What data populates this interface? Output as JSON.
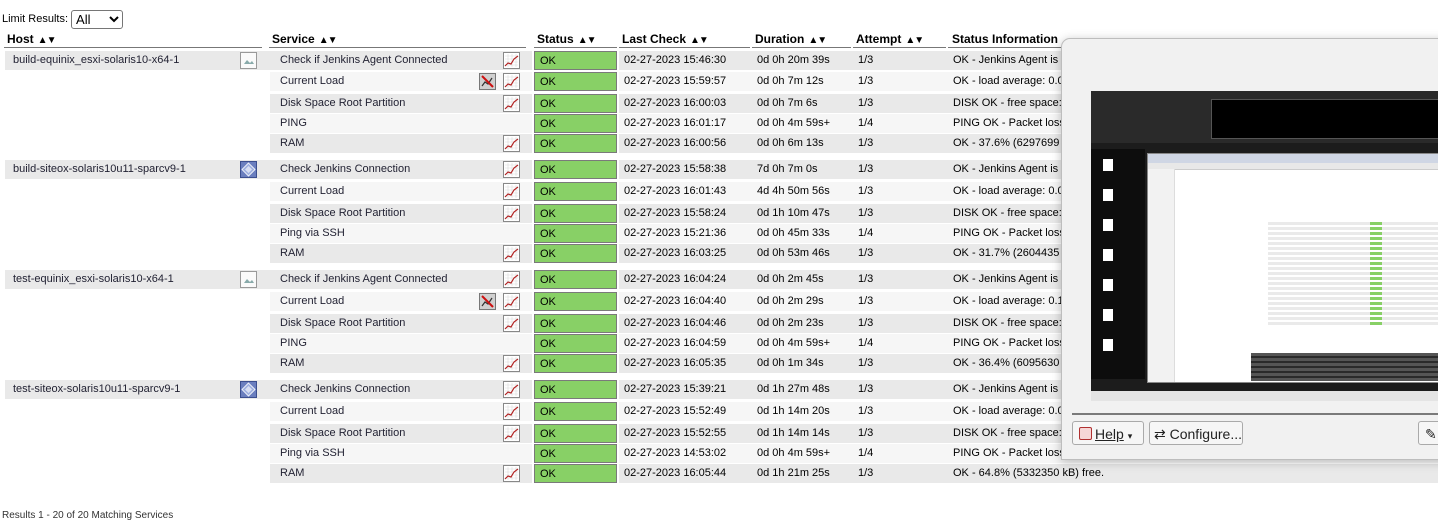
{
  "limit": {
    "label": "Limit Results:",
    "value": "All"
  },
  "columns": {
    "host": "Host",
    "service": "Service",
    "status": "Status",
    "last_check": "Last Check",
    "duration": "Duration",
    "attempt": "Attempt",
    "status_info": "Status Information"
  },
  "sort_arrows": "▲▼",
  "hosts": [
    {
      "name": "build-equinix_esxi-solaris10-x64-1",
      "icon": "host-image-icon",
      "services": [
        {
          "name": "Check if Jenkins Agent Connected",
          "graph": true,
          "noflap": false,
          "status": "OK",
          "last_check": "02-27-2023 15:46:30",
          "duration": "0d 0h 20m 39s",
          "attempt": "1/3",
          "info": "OK - Jenkins Agent is c"
        },
        {
          "name": "Current Load",
          "graph": true,
          "noflap": true,
          "status": "OK",
          "last_check": "02-27-2023 15:59:57",
          "duration": "0d 0h 7m 12s",
          "attempt": "1/3",
          "info": "OK - load average: 0.0"
        },
        {
          "name": "Disk Space Root Partition",
          "graph": true,
          "noflap": false,
          "status": "OK",
          "last_check": "02-27-2023 16:00:03",
          "duration": "0d 0h 7m 6s",
          "attempt": "1/3",
          "info": "DISK OK - free space:"
        },
        {
          "name": "PING",
          "graph": false,
          "noflap": false,
          "status": "OK",
          "last_check": "02-27-2023 16:01:17",
          "duration": "0d 0h 4m 59s+",
          "attempt": "1/4",
          "info": "PING OK - Packet loss"
        },
        {
          "name": "RAM",
          "graph": true,
          "noflap": false,
          "status": "OK",
          "last_check": "02-27-2023 16:00:56",
          "duration": "0d 0h 6m 13s",
          "attempt": "1/3",
          "info": "OK - 37.6% (6297699 k"
        }
      ]
    },
    {
      "name": "build-siteox-solaris10u11-sparcv9-1",
      "icon": "host-diamond-icon",
      "services": [
        {
          "name": "Check Jenkins Connection",
          "graph": true,
          "noflap": false,
          "status": "OK",
          "last_check": "02-27-2023 15:58:38",
          "duration": "7d 0h 7m 0s",
          "attempt": "1/3",
          "info": "OK - Jenkins Agent is c"
        },
        {
          "name": "Current Load",
          "graph": true,
          "noflap": false,
          "status": "OK",
          "last_check": "02-27-2023 16:01:43",
          "duration": "4d 4h 50m 56s",
          "attempt": "1/3",
          "info": "OK - load average: 0.0"
        },
        {
          "name": "Disk Space Root Partition",
          "graph": true,
          "noflap": false,
          "status": "OK",
          "last_check": "02-27-2023 15:58:24",
          "duration": "0d 1h 10m 47s",
          "attempt": "1/3",
          "info": "DISK OK - free space:"
        },
        {
          "name": "Ping via SSH",
          "graph": false,
          "noflap": false,
          "status": "OK",
          "last_check": "02-27-2023 15:21:36",
          "duration": "0d 0h 45m 33s",
          "attempt": "1/4",
          "info": "PING OK - Packet loss"
        },
        {
          "name": "RAM",
          "graph": true,
          "noflap": false,
          "status": "OK",
          "last_check": "02-27-2023 16:03:25",
          "duration": "0d 0h 53m 46s",
          "attempt": "1/3",
          "info": "OK - 31.7% (2604435 k"
        }
      ]
    },
    {
      "name": "test-equinix_esxi-solaris10-x64-1",
      "icon": "host-image-icon",
      "services": [
        {
          "name": "Check if Jenkins Agent Connected",
          "graph": true,
          "noflap": false,
          "status": "OK",
          "last_check": "02-27-2023 16:04:24",
          "duration": "0d 0h 2m 45s",
          "attempt": "1/3",
          "info": "OK - Jenkins Agent is c"
        },
        {
          "name": "Current Load",
          "graph": true,
          "noflap": true,
          "status": "OK",
          "last_check": "02-27-2023 16:04:40",
          "duration": "0d 0h 2m 29s",
          "attempt": "1/3",
          "info": "OK - load average: 0.1"
        },
        {
          "name": "Disk Space Root Partition",
          "graph": true,
          "noflap": false,
          "status": "OK",
          "last_check": "02-27-2023 16:04:46",
          "duration": "0d 0h 2m 23s",
          "attempt": "1/3",
          "info": "DISK OK - free space:"
        },
        {
          "name": "PING",
          "graph": false,
          "noflap": false,
          "status": "OK",
          "last_check": "02-27-2023 16:04:59",
          "duration": "0d 0h 4m 59s+",
          "attempt": "1/4",
          "info": "PING OK - Packet loss"
        },
        {
          "name": "RAM",
          "graph": true,
          "noflap": false,
          "status": "OK",
          "last_check": "02-27-2023 16:05:35",
          "duration": "0d 0h 1m 34s",
          "attempt": "1/3",
          "info": "OK - 36.4% (6095630 k"
        }
      ]
    },
    {
      "name": "test-siteox-solaris10u11-sparcv9-1",
      "icon": "host-diamond-icon",
      "services": [
        {
          "name": "Check Jenkins Connection",
          "graph": true,
          "noflap": false,
          "status": "OK",
          "last_check": "02-27-2023 15:39:21",
          "duration": "0d 1h 27m 48s",
          "attempt": "1/3",
          "info": "OK - Jenkins Agent is c"
        },
        {
          "name": "Current Load",
          "graph": true,
          "noflap": false,
          "status": "OK",
          "last_check": "02-27-2023 15:52:49",
          "duration": "0d 1h 14m 20s",
          "attempt": "1/3",
          "info": "OK - load average: 0.0"
        },
        {
          "name": "Disk Space Root Partition",
          "graph": true,
          "noflap": false,
          "status": "OK",
          "last_check": "02-27-2023 15:52:55",
          "duration": "0d 1h 14m 14s",
          "attempt": "1/3",
          "info": "DISK OK - free space:"
        },
        {
          "name": "Ping via SSH",
          "graph": false,
          "noflap": false,
          "status": "OK",
          "last_check": "02-27-2023 14:53:02",
          "duration": "0d 0h 4m 59s+",
          "attempt": "1/4",
          "info": "PING OK - Packet loss = 0%, RTA = 0.00 ms"
        },
        {
          "name": "RAM",
          "graph": true,
          "noflap": false,
          "status": "OK",
          "last_check": "02-27-2023 16:05:44",
          "duration": "0d 1h 21m 25s",
          "attempt": "1/3",
          "info": "OK - 64.8% (5332350 kB) free."
        }
      ]
    }
  ],
  "results_text": "Results 1 - 20 of 20 Matching Services",
  "overlay": {
    "help_label": "Help",
    "configure_label": "Configure..."
  },
  "colors": {
    "ok": "#88d066",
    "row_even": "#e9e9e9",
    "row_odd": "#f6f6f6"
  }
}
